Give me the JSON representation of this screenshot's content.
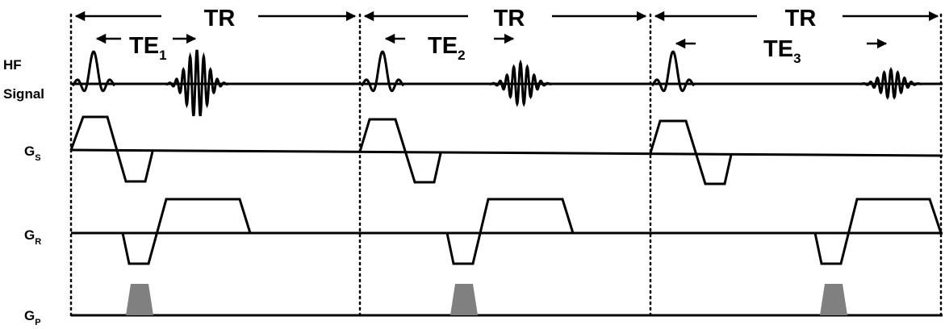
{
  "row_labels": {
    "hf_line1": "HF",
    "hf_line2": "Signal",
    "gs_main": "G",
    "gs_sub": "S",
    "gr_main": "G",
    "gr_sub": "R",
    "gp_main": "G",
    "gp_sub": "P"
  },
  "periods": [
    {
      "tr_label": "TR",
      "te_main": "TE",
      "te_sub": "1",
      "echo_amplitude": 1.0
    },
    {
      "tr_label": "TR",
      "te_main": "TE",
      "te_sub": "2",
      "echo_amplitude": 0.62
    },
    {
      "tr_label": "TR",
      "te_main": "TE",
      "te_sub": "3",
      "echo_amplitude": 0.42
    }
  ],
  "colors": {
    "line": "#000000",
    "phase_pulse": "#808080",
    "background": "#ffffff"
  }
}
